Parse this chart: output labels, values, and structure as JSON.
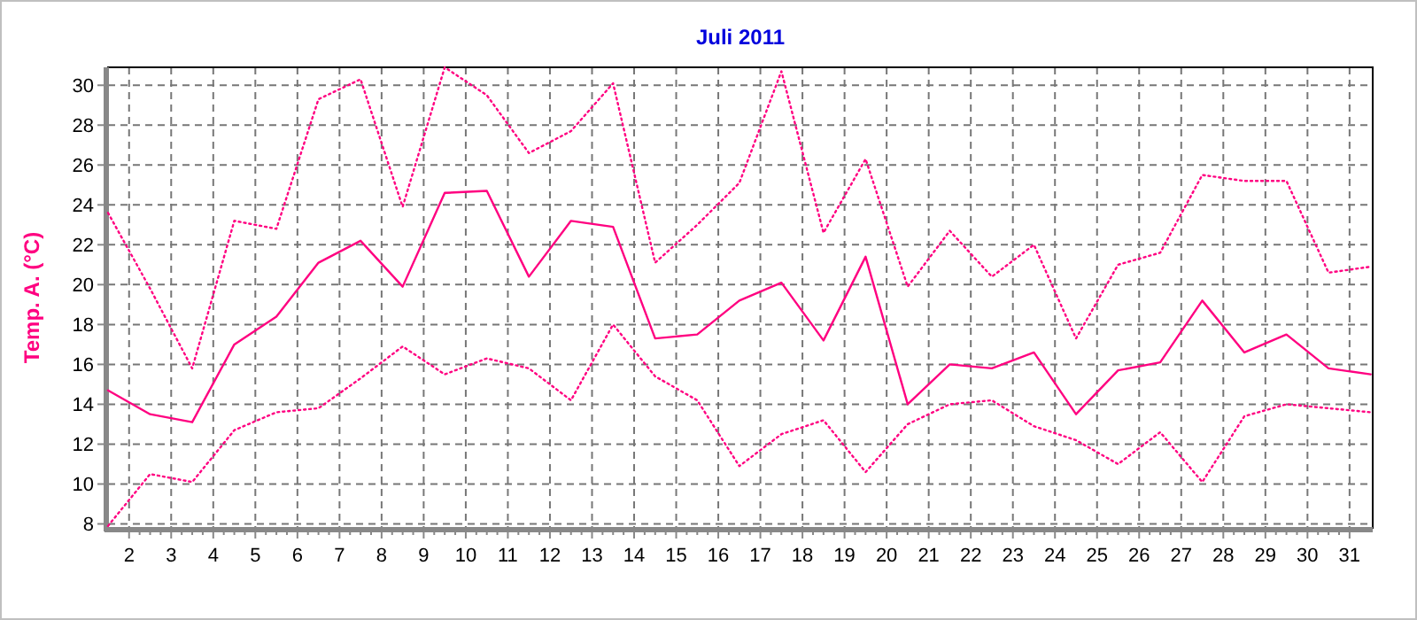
{
  "chart_data": {
    "type": "line",
    "title": "Juli 2011",
    "ylabel": "Temp. A. (°C)",
    "x": [
      1.5,
      2.5,
      3.5,
      4.5,
      5.5,
      6.5,
      7.5,
      8.5,
      9.5,
      10.5,
      11.5,
      12.5,
      13.5,
      14.5,
      15.5,
      16.5,
      17.5,
      18.5,
      19.5,
      20.5,
      21.5,
      22.5,
      23.5,
      24.5,
      25.5,
      26.5,
      27.5,
      28.5,
      29.5,
      30.5,
      31.5
    ],
    "series": [
      {
        "color": "#ff0080",
        "line_style": "dotted",
        "values": [
          23.6,
          19.8,
          15.8,
          23.2,
          22.8,
          29.3,
          30.3,
          23.9,
          30.9,
          29.5,
          26.6,
          27.7,
          30.1,
          21.1,
          23.0,
          25.1,
          30.7,
          22.6,
          26.3,
          19.9,
          22.7,
          20.4,
          22.0,
          17.3,
          21.0,
          21.6,
          25.5,
          25.2,
          25.2,
          20.6,
          20.9
        ]
      },
      {
        "color": "#ff0080",
        "line_style": "solid",
        "values": [
          14.7,
          13.5,
          13.1,
          17.0,
          18.4,
          21.1,
          22.2,
          19.9,
          24.6,
          24.7,
          20.4,
          23.2,
          22.9,
          17.3,
          17.5,
          19.2,
          20.1,
          17.2,
          21.4,
          14.0,
          16.0,
          15.8,
          16.6,
          13.5,
          15.7,
          16.1,
          19.2,
          16.6,
          17.5,
          15.8,
          15.5
        ]
      },
      {
        "color": "#ff0080",
        "line_style": "dotted",
        "values": [
          7.9,
          10.5,
          10.1,
          12.7,
          13.6,
          13.8,
          15.3,
          16.9,
          15.5,
          16.3,
          15.8,
          14.2,
          18.0,
          15.4,
          14.2,
          10.9,
          12.5,
          13.2,
          10.6,
          13.0,
          14.0,
          14.2,
          12.9,
          12.2,
          11.0,
          12.6,
          10.1,
          13.4,
          14.0,
          13.8,
          13.6
        ]
      }
    ],
    "xlim": [
      1.5,
      31.55
    ],
    "ylim": [
      7.8,
      30.9
    ],
    "xticks": [
      2,
      3,
      4,
      5,
      6,
      7,
      8,
      9,
      10,
      11,
      12,
      13,
      14,
      15,
      16,
      17,
      18,
      19,
      20,
      21,
      22,
      23,
      24,
      25,
      26,
      27,
      28,
      29,
      30,
      31
    ],
    "yticks": [
      8,
      10,
      12,
      14,
      16,
      18,
      20,
      22,
      24,
      26,
      28,
      30
    ],
    "grid": true,
    "marker": "none"
  }
}
